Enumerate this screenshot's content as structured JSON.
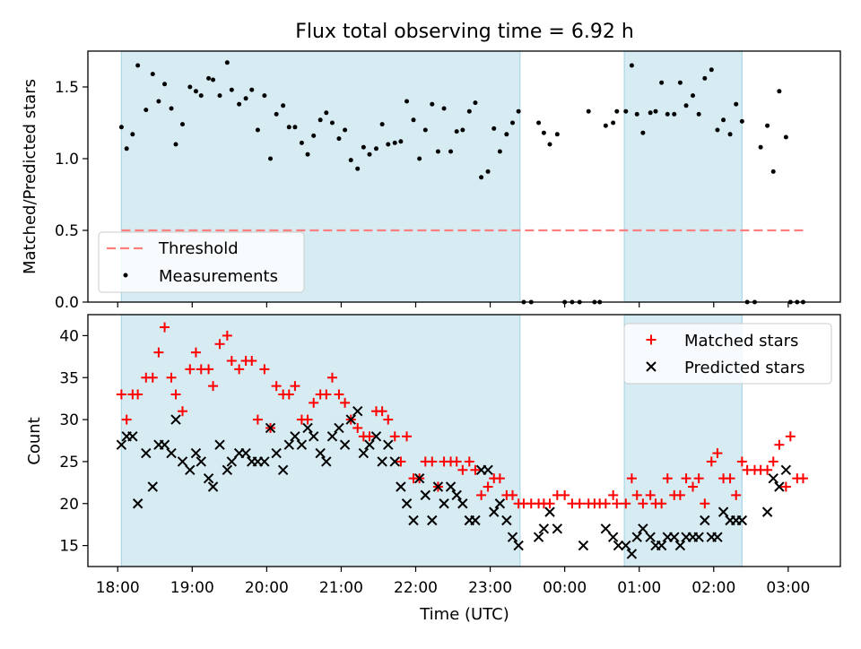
{
  "title": "Flux total observing time = 6.92 h",
  "colors": {
    "band": "#add8e6",
    "threshold": "#ff7f7f",
    "measure": "#000000",
    "matched": "#ff0000",
    "predicted": "#000000"
  },
  "chart_data": [
    {
      "type": "scatter",
      "panel": "top",
      "title": "Flux total observing time = 6.92 h",
      "xlabel": "",
      "ylabel": "Matched/Predicted stars",
      "xlim": [
        17.6,
        27.7
      ],
      "ylim": [
        0,
        1.75
      ],
      "yticks": [
        0.0,
        0.5,
        1.0,
        1.5
      ],
      "ytick_labels": [
        "0.0",
        "0.5",
        "1.0",
        "1.5"
      ],
      "xticks": [
        18,
        19,
        20,
        21,
        22,
        23,
        24,
        25,
        26,
        27
      ],
      "legend": {
        "position": "lower-left",
        "threshold_label": "Threshold",
        "measurements_label": "Measurements"
      },
      "shaded_intervals": [
        [
          18.05,
          23.4
        ],
        [
          24.8,
          26.38
        ]
      ],
      "threshold": {
        "value": 0.5,
        "x_start": 18.05,
        "x_end": 27.2
      },
      "measurements_x": [
        18.05,
        18.12,
        18.2,
        18.27,
        18.38,
        18.47,
        18.55,
        18.63,
        18.72,
        18.78,
        18.87,
        18.97,
        19.05,
        19.12,
        19.22,
        19.28,
        19.37,
        19.47,
        19.53,
        19.63,
        19.72,
        19.8,
        19.88,
        19.97,
        20.05,
        20.13,
        20.22,
        20.3,
        20.38,
        20.47,
        20.55,
        20.63,
        20.72,
        20.8,
        20.88,
        20.97,
        21.05,
        21.13,
        21.22,
        21.3,
        21.38,
        21.47,
        21.55,
        21.63,
        21.72,
        21.8,
        21.88,
        21.97,
        22.05,
        22.13,
        22.22,
        22.3,
        22.38,
        22.47,
        22.55,
        22.63,
        22.72,
        22.8,
        22.88,
        22.97,
        23.05,
        23.13,
        23.22,
        23.3,
        23.38,
        23.45,
        23.55,
        23.65,
        23.72,
        23.8,
        23.9,
        24.0,
        24.1,
        24.2,
        24.32,
        24.4,
        24.47,
        24.55,
        24.65,
        24.7,
        24.82,
        24.9,
        24.97,
        25.05,
        25.15,
        25.22,
        25.3,
        25.38,
        25.47,
        25.55,
        25.63,
        25.72,
        25.8,
        25.88,
        25.97,
        26.05,
        26.13,
        26.22,
        26.3,
        26.38,
        26.45,
        26.55,
        26.63,
        26.72,
        26.8,
        26.88,
        26.97,
        27.03,
        27.12,
        27.2
      ],
      "measurements_y": [
        1.22,
        1.07,
        1.17,
        1.65,
        1.34,
        1.59,
        1.4,
        1.52,
        1.35,
        1.1,
        1.24,
        1.5,
        1.47,
        1.44,
        1.56,
        1.55,
        1.44,
        1.67,
        1.48,
        1.38,
        1.42,
        1.48,
        1.2,
        1.44,
        1.0,
        1.31,
        1.37,
        1.22,
        1.22,
        1.11,
        1.03,
        1.16,
        1.27,
        1.32,
        1.25,
        1.14,
        1.2,
        0.99,
        0.93,
        1.08,
        1.03,
        1.07,
        1.24,
        1.1,
        1.11,
        1.12,
        1.4,
        1.27,
        1.0,
        1.2,
        1.38,
        1.05,
        1.35,
        1.05,
        1.19,
        1.2,
        1.33,
        1.39,
        0.87,
        0.91,
        1.21,
        1.05,
        1.17,
        1.25,
        1.33,
        0.0,
        0.0,
        1.25,
        1.18,
        1.1,
        1.17,
        0.0,
        0.0,
        0.0,
        1.33,
        0.0,
        0.0,
        1.23,
        1.25,
        1.33,
        1.33,
        1.65,
        1.31,
        1.18,
        1.32,
        1.33,
        1.53,
        1.31,
        1.31,
        1.53,
        1.37,
        1.44,
        1.31,
        1.56,
        1.62,
        1.2,
        1.27,
        1.17,
        1.38,
        1.26,
        0.0,
        0.0,
        1.08,
        1.23,
        0.91,
        1.47,
        1.15,
        0.0,
        0.0,
        0.0
      ]
    },
    {
      "type": "scatter",
      "panel": "bottom",
      "xlabel": "Time (UTC)",
      "ylabel": "Count",
      "xlim": [
        17.6,
        27.7
      ],
      "ylim": [
        12.5,
        42.5
      ],
      "yticks": [
        15,
        20,
        25,
        30,
        35,
        40
      ],
      "ytick_labels": [
        "15",
        "20",
        "25",
        "30",
        "35",
        "40"
      ],
      "xticks": [
        18,
        19,
        20,
        21,
        22,
        23,
        24,
        25,
        26,
        27
      ],
      "xtick_labels": [
        "18:00",
        "19:00",
        "20:00",
        "21:00",
        "22:00",
        "23:00",
        "00:00",
        "01:00",
        "02:00",
        "03:00"
      ],
      "legend": {
        "position": "upper-right",
        "matched_label": "Matched stars",
        "predicted_label": "Predicted stars"
      },
      "shaded_intervals": [
        [
          18.05,
          23.4
        ],
        [
          24.8,
          26.38
        ]
      ],
      "matched_x": [
        18.05,
        18.12,
        18.2,
        18.27,
        18.38,
        18.47,
        18.55,
        18.63,
        18.72,
        18.78,
        18.87,
        18.97,
        19.05,
        19.12,
        19.22,
        19.28,
        19.37,
        19.47,
        19.53,
        19.63,
        19.72,
        19.8,
        19.88,
        19.97,
        20.05,
        20.13,
        20.22,
        20.3,
        20.38,
        20.47,
        20.55,
        20.63,
        20.72,
        20.8,
        20.88,
        20.97,
        21.05,
        21.13,
        21.22,
        21.3,
        21.38,
        21.47,
        21.55,
        21.63,
        21.72,
        21.8,
        21.88,
        21.97,
        22.05,
        22.13,
        22.22,
        22.3,
        22.38,
        22.47,
        22.55,
        22.63,
        22.72,
        22.8,
        22.88,
        22.97,
        23.05,
        23.13,
        23.22,
        23.3,
        23.38,
        23.45,
        23.55,
        23.65,
        23.72,
        23.8,
        23.9,
        24.0,
        24.1,
        24.2,
        24.32,
        24.4,
        24.47,
        24.55,
        24.65,
        24.7,
        24.82,
        24.9,
        24.97,
        25.05,
        25.15,
        25.22,
        25.3,
        25.38,
        25.47,
        25.55,
        25.63,
        25.72,
        25.8,
        25.88,
        25.97,
        26.05,
        26.13,
        26.22,
        26.3,
        26.38,
        26.45,
        26.55,
        26.63,
        26.72,
        26.8,
        26.88,
        26.97,
        27.03,
        27.12,
        27.2
      ],
      "matched_y": [
        33,
        30,
        33,
        33,
        35,
        35,
        38,
        41,
        35,
        33,
        31,
        36,
        38,
        36,
        36,
        34,
        39,
        40,
        37,
        36,
        37,
        37,
        30,
        36,
        29,
        34,
        33,
        33,
        34,
        30,
        30,
        32,
        33,
        33,
        35,
        33,
        32,
        30,
        29,
        28,
        28,
        31,
        31,
        30,
        28,
        25,
        28,
        23,
        23,
        25,
        25,
        22,
        25,
        25,
        25,
        24,
        25,
        24,
        21,
        22,
        23,
        23,
        21,
        21,
        20,
        20,
        20,
        20,
        20,
        20,
        21,
        21,
        20,
        20,
        20,
        20,
        20,
        20,
        21,
        20,
        20,
        23,
        21,
        20,
        21,
        20,
        20,
        23,
        21,
        21,
        23,
        22,
        23,
        20,
        25,
        26,
        23,
        23,
        21,
        25,
        24,
        24,
        24,
        24,
        25,
        27,
        22,
        28,
        23,
        23
      ],
      "predicted_x": [
        18.05,
        18.12,
        18.2,
        18.27,
        18.38,
        18.47,
        18.55,
        18.63,
        18.72,
        18.78,
        18.87,
        18.97,
        19.05,
        19.12,
        19.22,
        19.28,
        19.37,
        19.47,
        19.53,
        19.63,
        19.72,
        19.8,
        19.88,
        19.97,
        20.05,
        20.13,
        20.22,
        20.3,
        20.38,
        20.47,
        20.55,
        20.63,
        20.72,
        20.8,
        20.88,
        20.97,
        21.05,
        21.13,
        21.22,
        21.3,
        21.38,
        21.47,
        21.55,
        21.63,
        21.72,
        21.8,
        21.88,
        21.97,
        22.05,
        22.13,
        22.22,
        22.3,
        22.38,
        22.47,
        22.55,
        22.63,
        22.72,
        22.8,
        22.88,
        22.97,
        23.05,
        23.13,
        23.22,
        23.3,
        23.38,
        23.65,
        23.72,
        23.8,
        23.9,
        24.25,
        24.55,
        24.65,
        24.72,
        24.82,
        24.9,
        24.97,
        25.05,
        25.15,
        25.22,
        25.3,
        25.38,
        25.47,
        25.55,
        25.63,
        25.72,
        25.8,
        25.88,
        25.97,
        26.05,
        26.13,
        26.22,
        26.3,
        26.38,
        26.72,
        26.8,
        26.88,
        26.97
      ],
      "predicted_y": [
        27,
        28,
        28,
        20,
        26,
        22,
        27,
        27,
        26,
        30,
        25,
        24,
        26,
        25,
        23,
        22,
        27,
        24,
        25,
        26,
        26,
        25,
        25,
        25,
        29,
        26,
        24,
        27,
        28,
        27,
        29,
        28,
        26,
        25,
        28,
        29,
        27,
        30,
        31,
        26,
        27,
        28,
        25,
        27,
        25,
        22,
        20,
        18,
        23,
        21,
        18,
        22,
        20,
        22,
        21,
        20,
        18,
        18,
        24,
        24,
        19,
        20,
        18,
        16,
        15,
        16,
        17,
        19,
        17,
        15,
        17,
        16,
        15,
        15,
        14,
        16,
        17,
        16,
        15,
        15,
        16,
        16,
        15,
        16,
        16,
        16,
        18,
        16,
        16,
        19,
        18,
        18,
        18,
        19,
        23,
        22,
        24,
        19,
        20
      ]
    }
  ]
}
